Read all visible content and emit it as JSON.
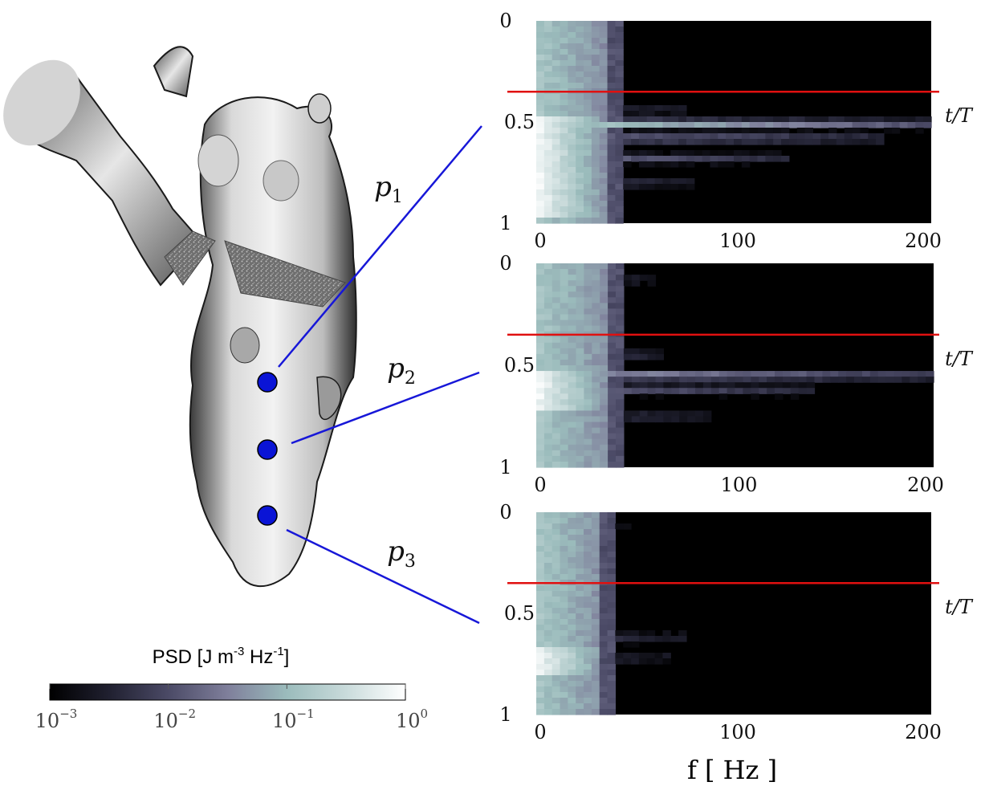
{
  "chart_data": {
    "type": "heatmap",
    "title": "",
    "colorbar": {
      "label": "PSD [J m",
      "label_sup1": "-3",
      "label_mid": " Hz",
      "label_sup2": "-1",
      "label_end": "]",
      "scale": "log",
      "range": [
        0.001,
        1
      ],
      "ticks": [
        {
          "base": "10",
          "exp": "−3"
        },
        {
          "base": "10",
          "exp": "−2"
        },
        {
          "base": "10",
          "exp": "−1"
        },
        {
          "base": "10",
          "exp": "0"
        }
      ],
      "colors": [
        "#000000",
        "#202030",
        "#4b4a66",
        "#7f7f9b",
        "#9bbcbc",
        "#c9dbdb",
        "#ffffff"
      ]
    },
    "probes": [
      {
        "label": "p",
        "sub": "1"
      },
      {
        "label": "p",
        "sub": "2"
      },
      {
        "label": "p",
        "sub": "3"
      }
    ],
    "probe_color": "#0a14d6",
    "marker_color": "#e01010",
    "xlabel": "f [ Hz ]",
    "ylabel": "t/T",
    "xlim": [
      0,
      200
    ],
    "ylim": [
      0,
      1
    ],
    "xticks": [
      "0",
      "100",
      "200"
    ],
    "yticks": [
      "0",
      "0.5",
      "1"
    ],
    "panels": [
      {
        "probe": "p1",
        "marker_t": 0.35,
        "band_x_max_hz": 35,
        "events": [
          {
            "t": 0.44,
            "reach_hz": 75,
            "strength": 0.3
          },
          {
            "t": 0.51,
            "reach_hz": 200,
            "strength": 0.85
          },
          {
            "t": 0.58,
            "reach_hz": 175,
            "strength": 0.6
          },
          {
            "t": 0.68,
            "reach_hz": 130,
            "strength": 0.45
          },
          {
            "t": 0.8,
            "reach_hz": 80,
            "strength": 0.35
          }
        ],
        "hot_t": [
          0.48,
          0.98
        ]
      },
      {
        "probe": "p2",
        "marker_t": 0.35,
        "band_x_max_hz": 36,
        "events": [
          {
            "t": 0.08,
            "reach_hz": 60,
            "strength": 0.3
          },
          {
            "t": 0.45,
            "reach_hz": 65,
            "strength": 0.4
          },
          {
            "t": 0.55,
            "reach_hz": 200,
            "strength": 0.75
          },
          {
            "t": 0.62,
            "reach_hz": 140,
            "strength": 0.5
          },
          {
            "t": 0.75,
            "reach_hz": 90,
            "strength": 0.35
          }
        ],
        "hot_t": [
          0.52,
          0.72
        ]
      },
      {
        "probe": "p3",
        "marker_t": 0.35,
        "band_x_max_hz": 34,
        "events": [
          {
            "t": 0.06,
            "reach_hz": 50,
            "strength": 0.25
          },
          {
            "t": 0.62,
            "reach_hz": 75,
            "strength": 0.35
          },
          {
            "t": 0.72,
            "reach_hz": 70,
            "strength": 0.3
          }
        ],
        "hot_t": [
          0.66,
          0.8
        ]
      }
    ]
  }
}
